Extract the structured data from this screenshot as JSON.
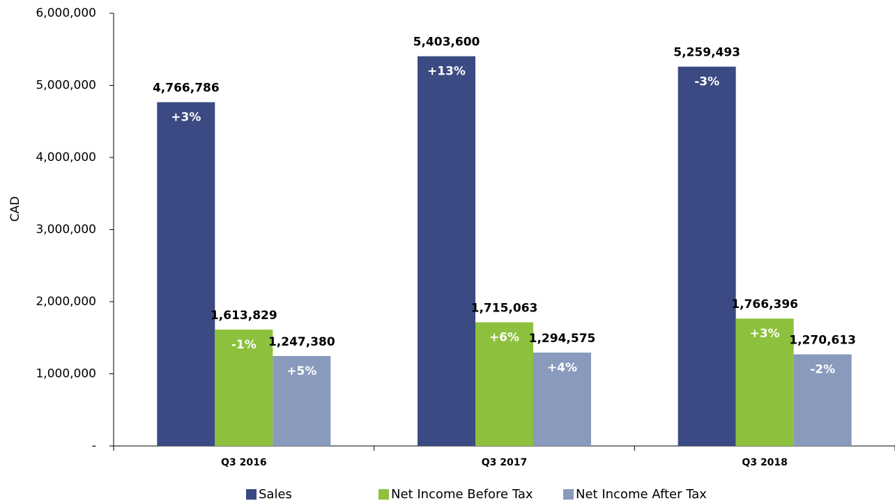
{
  "chart_data": {
    "type": "bar",
    "y_label": "CAD",
    "categories": [
      "Q3 2016",
      "Q3 2017",
      "Q3 2018"
    ],
    "series": [
      {
        "name": "Sales",
        "color": "#3b4a82",
        "values": [
          4766786,
          5403600,
          5259493
        ],
        "value_labels": [
          "4,766,786",
          "5,403,600",
          "5,259,493"
        ],
        "change_labels": [
          "+3%",
          "+13%",
          "-3%"
        ]
      },
      {
        "name": "Net Income Before Tax",
        "color": "#8dc13d",
        "values": [
          1613829,
          1715063,
          1766396
        ],
        "value_labels": [
          "1,613,829",
          "1,715,063",
          "1,766,396"
        ],
        "change_labels": [
          "-1%",
          "+6%",
          "+3%"
        ]
      },
      {
        "name": "Net Income After Tax",
        "color": "#8a9abd",
        "values": [
          1247380,
          1294575,
          1270613
        ],
        "value_labels": [
          "1,247,380",
          "1,294,575",
          "1,270,613"
        ],
        "change_labels": [
          "+5%",
          "+4%",
          "-2%"
        ]
      }
    ],
    "ylim": [
      0,
      6000000
    ],
    "yticks": [
      {
        "value": 0,
        "label": "-"
      },
      {
        "value": 1000000,
        "label": "1,000,000"
      },
      {
        "value": 2000000,
        "label": "2,000,000"
      },
      {
        "value": 3000000,
        "label": "3,000,000"
      },
      {
        "value": 4000000,
        "label": "4,000,000"
      },
      {
        "value": 5000000,
        "label": "5,000,000"
      },
      {
        "value": 6000000,
        "label": "6,000,000"
      }
    ],
    "legend": "bottom"
  }
}
